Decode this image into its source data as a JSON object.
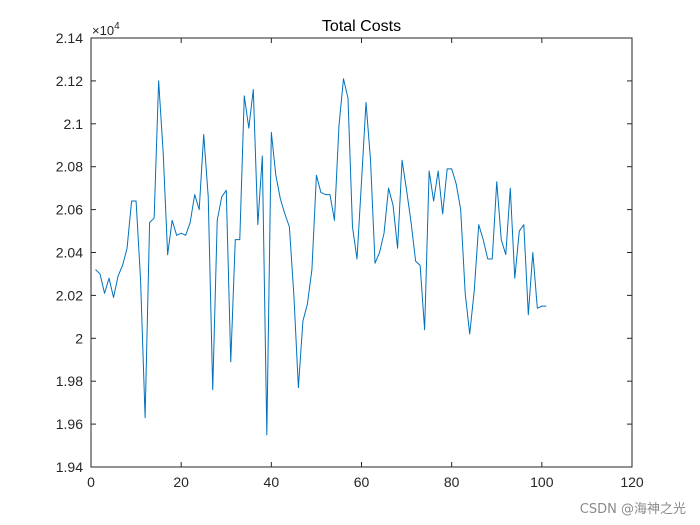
{
  "chart_data": {
    "type": "line",
    "title": "Total Costs",
    "xlabel": "",
    "ylabel": "",
    "xlim": [
      0,
      120
    ],
    "ylim": [
      19400,
      21400
    ],
    "xticks": [
      0,
      20,
      40,
      60,
      80,
      100,
      120
    ],
    "xtick_labels": [
      "0",
      "20",
      "40",
      "60",
      "80",
      "100",
      "120"
    ],
    "yticks": [
      19400,
      19600,
      19800,
      20000,
      20200,
      20400,
      20600,
      20800,
      21000,
      21200,
      21400
    ],
    "ytick_labels": [
      "1.94",
      "1.96",
      "1.98",
      "2",
      "2.02",
      "2.04",
      "2.06",
      "2.08",
      "2.1",
      "2.12",
      "2.14"
    ],
    "y_exponent": {
      "base": "×10",
      "power": "4"
    },
    "grid": false,
    "line_color": "#0072BD",
    "series": [
      {
        "x": [
          1,
          2,
          3,
          4,
          5,
          6,
          7,
          8,
          9,
          10,
          11,
          12,
          13,
          14,
          15,
          16,
          17,
          18,
          19,
          20,
          21,
          22,
          23,
          24,
          25,
          26,
          27,
          28,
          29,
          30,
          31,
          32,
          33,
          34,
          35,
          36,
          37,
          38,
          39,
          40,
          41,
          42,
          43,
          44,
          45,
          46,
          47,
          48,
          49,
          50,
          51,
          52,
          53,
          54,
          55,
          56,
          57,
          58,
          59,
          60,
          61,
          62,
          63,
          64,
          65,
          66,
          67,
          68,
          69,
          70,
          71,
          72,
          73,
          74,
          75,
          76,
          77,
          78,
          79,
          80,
          81,
          82,
          83,
          84,
          85,
          86,
          87,
          88,
          89,
          90,
          91,
          92,
          93,
          94,
          95,
          96,
          97,
          98,
          99,
          100,
          101
        ],
        "y": [
          20320,
          20300,
          20210,
          20280,
          20190,
          20290,
          20340,
          20420,
          20640,
          20640,
          20270,
          19630,
          20540,
          20560,
          21200,
          20870,
          20390,
          20550,
          20480,
          20490,
          20480,
          20540,
          20670,
          20600,
          20950,
          20660,
          19760,
          20550,
          20660,
          20690,
          19890,
          20460,
          20460,
          21130,
          20980,
          21160,
          20530,
          20850,
          19550,
          20960,
          20760,
          20650,
          20580,
          20520,
          20200,
          19770,
          20080,
          20160,
          20320,
          20760,
          20680,
          20670,
          20670,
          20550,
          20990,
          21210,
          21120,
          20520,
          20370,
          20730,
          21100,
          20830,
          20350,
          20400,
          20490,
          20700,
          20620,
          20420,
          20830,
          20690,
          20540,
          20360,
          20340,
          20040,
          20780,
          20640,
          20780,
          20580,
          20790,
          20790,
          20720,
          20600,
          20210,
          20020,
          20220,
          20530,
          20460,
          20370,
          20370,
          20730,
          20460,
          20390,
          20700,
          20280,
          20500,
          20530,
          20110,
          20400,
          20140,
          20150,
          20150
        ]
      }
    ]
  },
  "watermark": "CSDN @海神之光"
}
